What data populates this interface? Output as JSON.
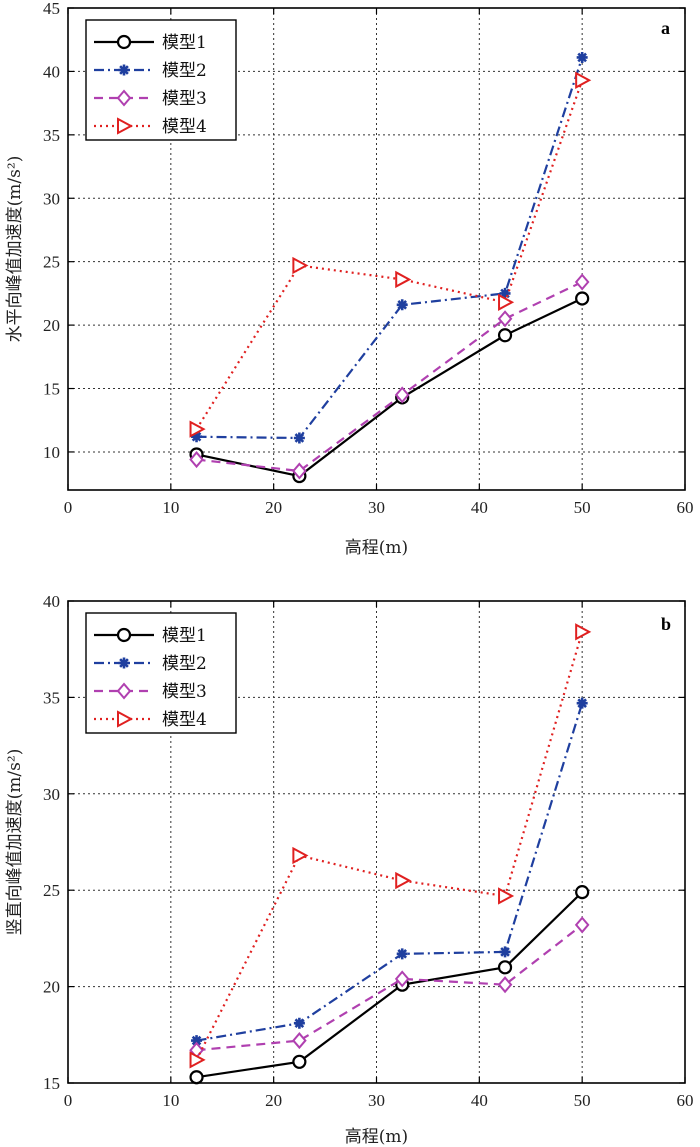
{
  "chart_data": [
    {
      "type": "line",
      "panel_label": "a",
      "xlabel": "高程(m)",
      "ylabel": "水平向峰值加速度(m/s²)",
      "xlim": [
        0,
        60
      ],
      "ylim": [
        7,
        45
      ],
      "xticks": [
        0,
        10,
        20,
        30,
        40,
        50,
        60
      ],
      "yticks": [
        10,
        15,
        20,
        25,
        30,
        35,
        40,
        45
      ],
      "grid": true,
      "legend_position": "top-left",
      "x": [
        12.5,
        22.5,
        32.5,
        42.5,
        50
      ],
      "series": [
        {
          "name": "模型1",
          "values": [
            9.8,
            8.1,
            14.3,
            19.2,
            22.1
          ],
          "color": "#000000",
          "marker": "circle",
          "dash": "solid"
        },
        {
          "name": "模型2",
          "values": [
            11.2,
            11.1,
            21.6,
            22.5,
            41.1
          ],
          "color": "#1f3f9f",
          "marker": "star",
          "dash": "dashdot"
        },
        {
          "name": "模型3",
          "values": [
            9.4,
            8.5,
            14.5,
            20.5,
            23.4
          ],
          "color": "#b040b0",
          "marker": "diamond",
          "dash": "dash"
        },
        {
          "name": "模型4",
          "values": [
            11.8,
            24.7,
            23.6,
            21.8,
            39.3
          ],
          "color": "#e02020",
          "marker": "triangle-right",
          "dash": "dot"
        }
      ]
    },
    {
      "type": "line",
      "panel_label": "b",
      "xlabel": "高程(m)",
      "ylabel": "竖直向峰值加速度(m/s²)",
      "xlim": [
        0,
        60
      ],
      "ylim": [
        15,
        40
      ],
      "xticks": [
        0,
        10,
        20,
        30,
        40,
        50,
        60
      ],
      "yticks": [
        15,
        20,
        25,
        30,
        35,
        40
      ],
      "grid": true,
      "legend_position": "top-left",
      "x": [
        12.5,
        22.5,
        32.5,
        42.5,
        50
      ],
      "series": [
        {
          "name": "模型1",
          "values": [
            15.3,
            16.1,
            20.1,
            21.0,
            24.9
          ],
          "color": "#000000",
          "marker": "circle",
          "dash": "solid"
        },
        {
          "name": "模型2",
          "values": [
            17.2,
            18.1,
            21.7,
            21.8,
            34.7
          ],
          "color": "#1f3f9f",
          "marker": "star",
          "dash": "dashdot"
        },
        {
          "name": "模型3",
          "values": [
            16.7,
            17.2,
            20.4,
            20.1,
            23.2
          ],
          "color": "#b040b0",
          "marker": "diamond",
          "dash": "dash"
        },
        {
          "name": "模型4",
          "values": [
            16.2,
            26.8,
            25.5,
            24.7,
            38.4
          ],
          "color": "#e02020",
          "marker": "triangle-right",
          "dash": "dot"
        }
      ]
    }
  ]
}
